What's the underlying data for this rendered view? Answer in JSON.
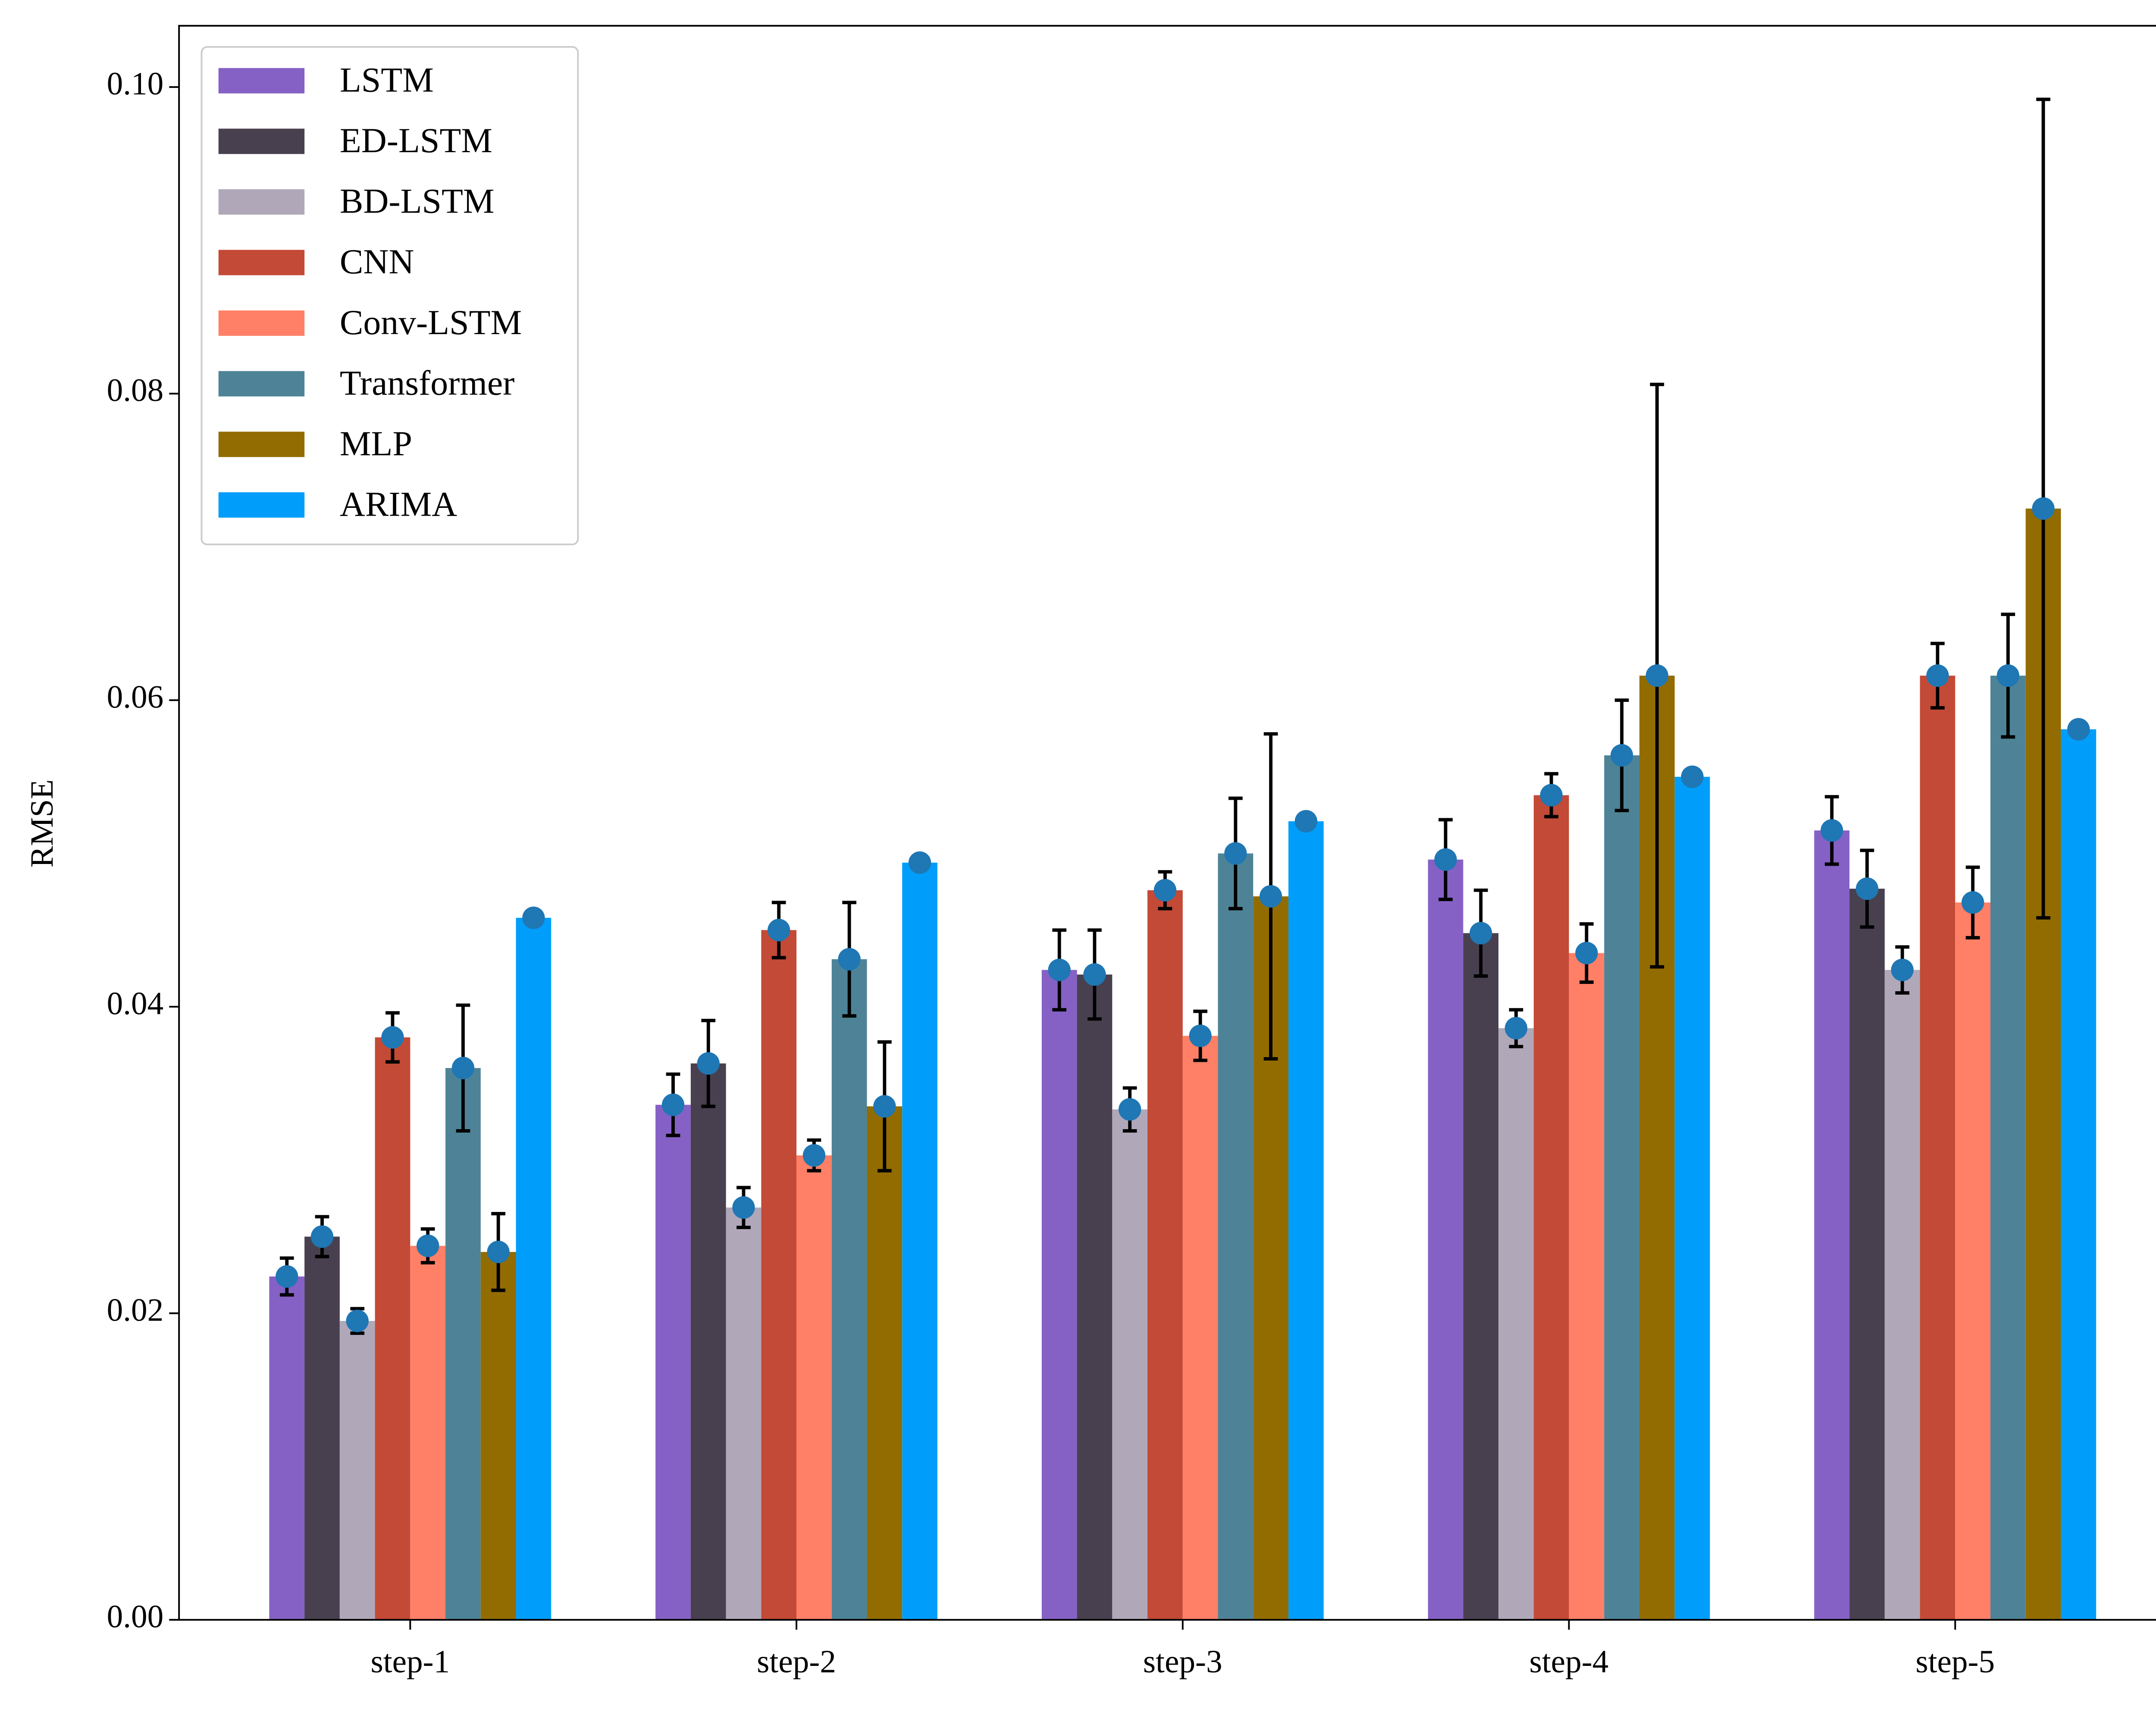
{
  "chart_data": {
    "type": "bar",
    "ylabel": "RMSE",
    "categories": [
      "step-1",
      "step-2",
      "step-3",
      "step-4",
      "step-5"
    ],
    "ylim": [
      0,
      0.104
    ],
    "yticks": [
      {
        "value": 0,
        "label": "0.00"
      },
      {
        "value": 0.02,
        "label": "0.02"
      },
      {
        "value": 0.04,
        "label": "0.04"
      },
      {
        "value": 0.06,
        "label": "0.06"
      },
      {
        "value": 0.08,
        "label": "0.08"
      },
      {
        "value": 0.1,
        "label": "0.10"
      }
    ],
    "legend": "upper left",
    "marker_color": "#1f77b4",
    "series": [
      {
        "name": "LSTM",
        "color": "#8561c5",
        "values": [
          0.0224,
          0.0336,
          0.0424,
          0.0496,
          0.0515
        ],
        "errors": [
          0.0012,
          0.002,
          0.0026,
          0.0026,
          0.0022
        ]
      },
      {
        "name": "ED-LSTM",
        "color": "#48404f",
        "values": [
          0.025,
          0.0363,
          0.0421,
          0.0448,
          0.0477
        ],
        "errors": [
          0.0013,
          0.0028,
          0.0029,
          0.0028,
          0.0025
        ]
      },
      {
        "name": "BD-LSTM",
        "color": "#b0a8b9",
        "values": [
          0.0195,
          0.0269,
          0.0333,
          0.0386,
          0.0424
        ],
        "errors": [
          0.0008,
          0.0013,
          0.0014,
          0.0012,
          0.0015
        ]
      },
      {
        "name": "CNN",
        "color": "#c34a36",
        "values": [
          0.038,
          0.045,
          0.0476,
          0.0538,
          0.0616
        ],
        "errors": [
          0.0016,
          0.0018,
          0.0012,
          0.0014,
          0.0021
        ]
      },
      {
        "name": "Conv-LSTM",
        "color": "#ff8066",
        "values": [
          0.0244,
          0.0303,
          0.0381,
          0.0435,
          0.0468
        ],
        "errors": [
          0.0011,
          0.001,
          0.0016,
          0.0019,
          0.0023
        ]
      },
      {
        "name": "Transformer",
        "color": "#4e8397",
        "values": [
          0.036,
          0.0431,
          0.05,
          0.0564,
          0.0616
        ],
        "errors": [
          0.0041,
          0.0037,
          0.0036,
          0.0036,
          0.004
        ]
      },
      {
        "name": "MLP",
        "color": "#926c00",
        "values": [
          0.024,
          0.0335,
          0.0472,
          0.0616,
          0.0725
        ],
        "errors": [
          0.0025,
          0.0042,
          0.0106,
          0.019,
          0.0267
        ]
      },
      {
        "name": "ARIMA",
        "color": "#009efa",
        "values": [
          0.0458,
          0.0494,
          0.0521,
          0.055,
          0.0581
        ]
      }
    ]
  }
}
